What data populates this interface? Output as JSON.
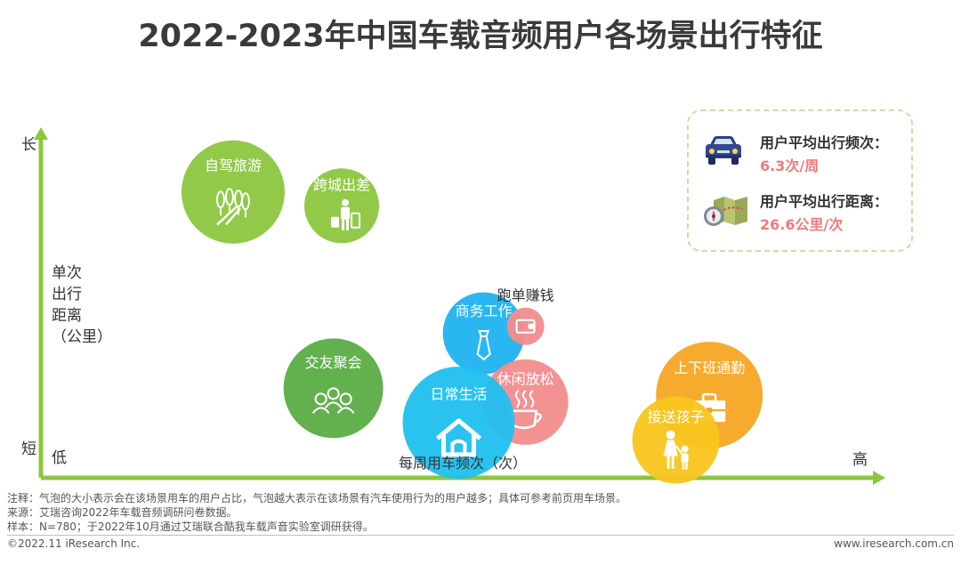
{
  "title": "2022-2023年中国车载音频用户各场景出行特征",
  "legend": {
    "freq_label": "用户平均出行频次：",
    "freq_value": "6.3次/周",
    "dist_label": "用户平均出行距离：",
    "dist_value": "26.6公里/次",
    "freq_icon": "car-icon",
    "dist_icon": "map-compass-icon"
  },
  "chart_data": {
    "type": "bubble",
    "xlabel": "每周用车频次（次）",
    "ylabel": "单次出行距离（公里）",
    "x_low": "低",
    "x_high": "高",
    "y_low": "短",
    "y_high": "长",
    "axis_color": "#8cc63f",
    "series": [
      {
        "name": "自驾旅游",
        "x": 2.3,
        "y": 8.3,
        "size": 5.8,
        "color": "#8cc63f",
        "icon": "forest-road-icon"
      },
      {
        "name": "跨城出差",
        "x": 3.6,
        "y": 7.9,
        "size": 4.2,
        "color": "#8cc63f",
        "icon": "traveler-luggage-icon"
      },
      {
        "name": "交友聚会",
        "x": 3.5,
        "y": 2.6,
        "size": 5.6,
        "color": "#5aac44",
        "icon": "friends-group-icon"
      },
      {
        "name": "商务工作",
        "x": 5.3,
        "y": 4.2,
        "size": 4.6,
        "color": "#1fb3f0",
        "icon": "necktie-icon"
      },
      {
        "name": "跑单赚钱",
        "x": 5.8,
        "y": 4.4,
        "size": 2.1,
        "color": "#f28c8c",
        "icon": "wallet-icon"
      },
      {
        "name": "休闲放松",
        "x": 5.8,
        "y": 2.2,
        "size": 4.8,
        "color": "#f28c8c",
        "icon": "coffee-cup-icon"
      },
      {
        "name": "日常生活",
        "x": 5.0,
        "y": 1.6,
        "size": 6.3,
        "color": "#1fc0ef",
        "icon": "home-icon"
      },
      {
        "name": "上下班通勤",
        "x": 8.0,
        "y": 2.4,
        "size": 6.0,
        "color": "#f5a623",
        "icon": "briefcase-icon"
      },
      {
        "name": "接送孩子",
        "x": 7.6,
        "y": 1.1,
        "size": 4.9,
        "color": "#f8c51c",
        "icon": "parent-child-icon"
      }
    ]
  },
  "notes": [
    "注释：气泡的大小表示会在该场景用车的用户占比，气泡越大表示在该场景有汽车使用行为的用户越多；具体可参考前页用车场景。",
    "来源：艾瑞咨询2022年车载音频调研问卷数据。",
    "样本：N=780；于2022年10月通过艾瑞联合酷我车载声音实验室调研获得。"
  ],
  "footer": {
    "copyright": "©2022.11 iResearch Inc.",
    "website": "www.iresearch.com.cn"
  }
}
